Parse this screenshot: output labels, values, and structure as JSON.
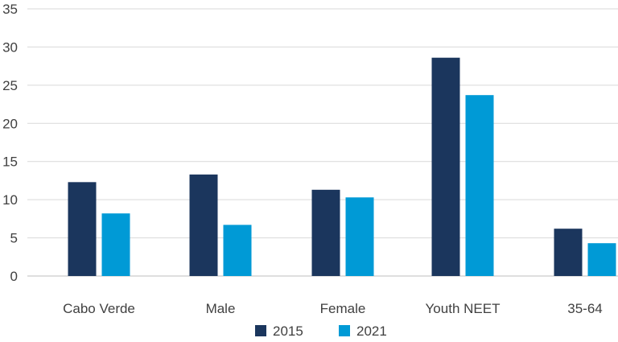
{
  "chart_data": {
    "type": "bar",
    "categories": [
      "Cabo Verde",
      "Male",
      "Female",
      "Youth NEET",
      "35-64"
    ],
    "series": [
      {
        "name": "2015",
        "values": [
          12.3,
          13.3,
          11.3,
          28.6,
          6.2
        ],
        "color": "#1b365d"
      },
      {
        "name": "2021",
        "values": [
          8.2,
          6.7,
          10.3,
          23.7,
          4.3
        ],
        "color": "#009ad6"
      }
    ],
    "ylim": [
      0,
      35
    ],
    "yticks": [
      "0",
      "5",
      "10",
      "15",
      "20",
      "25",
      "30",
      "35"
    ],
    "grid": true,
    "legend": "bottom-center",
    "title": "",
    "xlabel": "",
    "ylabel": ""
  }
}
